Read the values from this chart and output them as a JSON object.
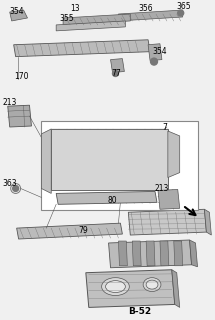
{
  "bg_color": "#f0f0f0",
  "border_color": "#888888",
  "line_color": "#555555",
  "part_color": "#aaaaaa",
  "dark_part": "#777777",
  "title": "B-52",
  "figsize": [
    2.15,
    3.2
  ],
  "dpi": 100
}
